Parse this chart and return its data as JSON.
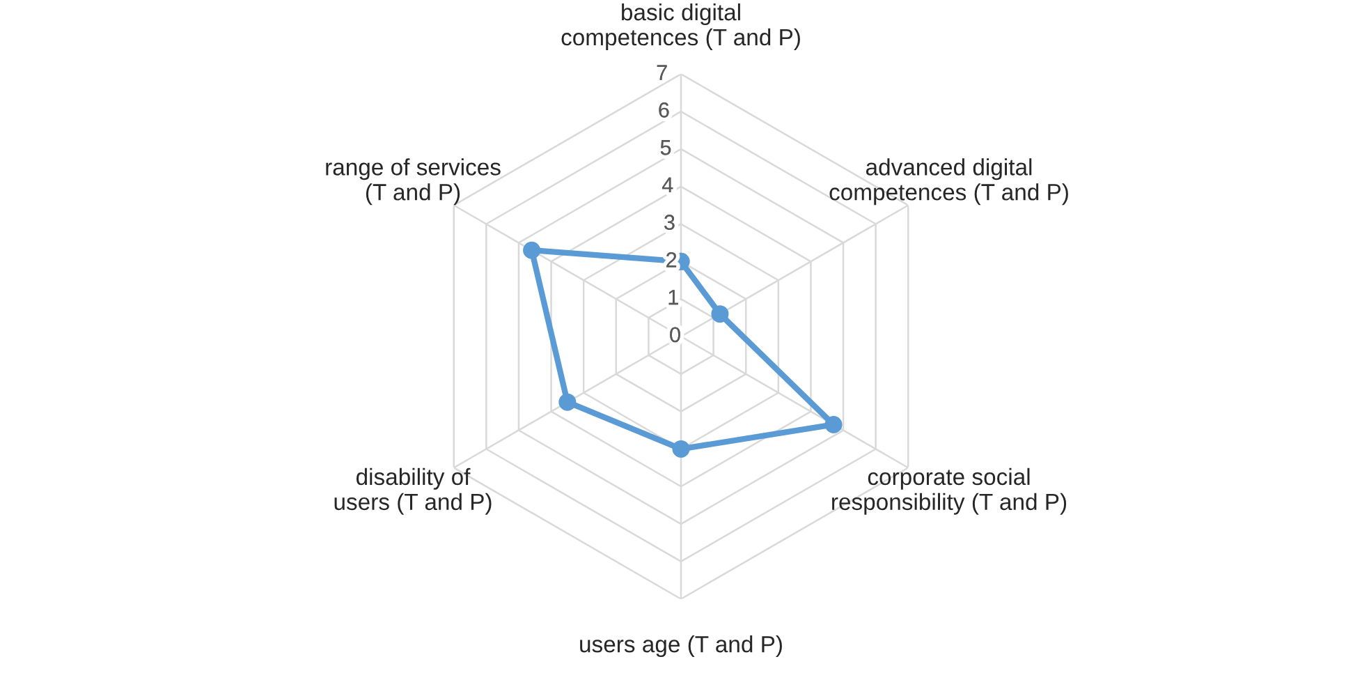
{
  "chart_data": {
    "type": "radar",
    "categories": [
      "basic digital competences (T and P)",
      "advanced digital competences (T and P)",
      "corporate social responsibility (T and P)",
      "users age (T and P)",
      "disability of users (T and P)",
      "range of services (T and P)"
    ],
    "series": [
      {
        "color": "#5b9bd5",
        "values": [
          2,
          1.2,
          4.7,
          3,
          3.5,
          4.6
        ]
      }
    ],
    "ylim": [
      0,
      7
    ],
    "yticks": [
      0,
      1,
      2,
      3,
      4,
      5,
      6,
      7
    ],
    "grid": true,
    "marker": "circle"
  }
}
